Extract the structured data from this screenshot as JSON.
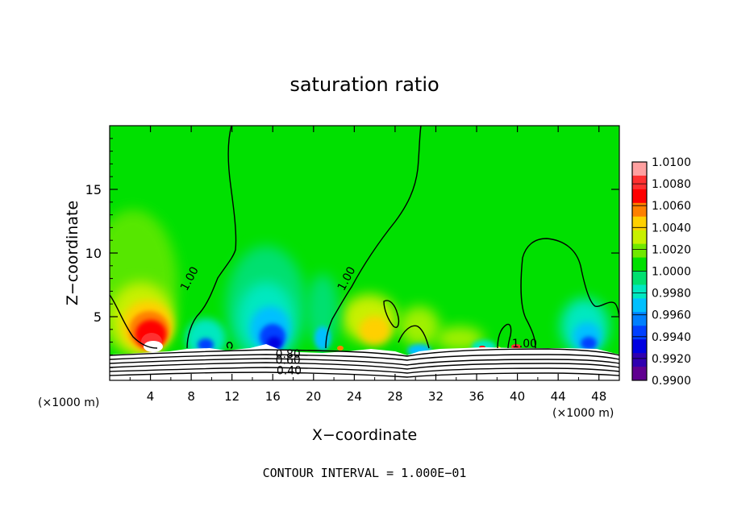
{
  "chart_data": {
    "type": "heatmap",
    "title": "saturation ratio",
    "xlabel": "X−coordinate",
    "ylabel": "Z−coordinate",
    "x_unit_left": "(×1000 m)",
    "x_unit_right": "(×1000 m)",
    "footer": "CONTOUR INTERVAL =  1.000E−01",
    "xlim": [
      0,
      50
    ],
    "ylim": [
      0,
      20
    ],
    "x_ticks": [
      4,
      8,
      12,
      16,
      20,
      24,
      28,
      32,
      36,
      40,
      44,
      48
    ],
    "y_ticks": [
      5,
      10,
      15
    ],
    "colorbar": {
      "labels": [
        "1.0100",
        "1.0080",
        "1.0060",
        "1.0040",
        "1.0020",
        "1.0000",
        "0.9980",
        "0.9960",
        "0.9940",
        "0.9920",
        "0.9900"
      ],
      "colors": [
        "#ffa0a0",
        "#ff3030",
        "#ff0000",
        "#ff8000",
        "#ffd000",
        "#c8f000",
        "#70e800",
        "#00e000",
        "#00e070",
        "#00e8c0",
        "#00c0ff",
        "#0080ff",
        "#0040ff",
        "#0000e0",
        "#3000b0",
        "#600090"
      ]
    },
    "contour_labels": [
      {
        "text": "1.00",
        "x": 7.8,
        "z": 8.0
      },
      {
        "text": "1.00",
        "x": 23.2,
        "z": 8.0
      },
      {
        "text": "1.00",
        "x": 40.7,
        "z": 2.9
      },
      {
        "text": "0.80",
        "x": 17.5,
        "z": 2.1
      },
      {
        "text": "0.60",
        "x": 17.5,
        "z": 1.6
      },
      {
        "text": "0.40",
        "x": 17.6,
        "z": 0.8
      }
    ],
    "features": [
      {
        "kind": "supersaturation-max",
        "x": 4,
        "z": 4.0,
        "value": 1.01
      },
      {
        "kind": "subsaturation-min",
        "x": 16,
        "z": 3.0,
        "value": 0.992
      },
      {
        "kind": "subsaturation-min",
        "x": 47,
        "z": 3.5,
        "value": 0.994
      }
    ]
  }
}
